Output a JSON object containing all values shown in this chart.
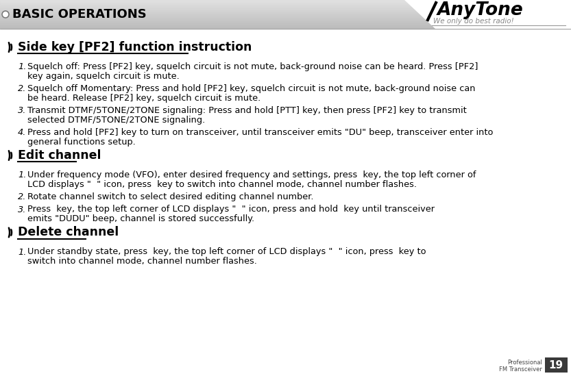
{
  "bg_color": "#ffffff",
  "header_text": "BASIC OPERATIONS",
  "header_text_color": "#000000",
  "header_bg_start": "#bbbbbb",
  "header_bg_end": "#dddddd",
  "page_number": "19",
  "section1_title": "Side key [PF2] function instruction",
  "section1_items": [
    "Squelch off: Press [PF2] key, squelch circuit is not mute, back-ground noise can be heard. Press [PF2]\nkey again, squelch circuit is mute.",
    "Squelch off Momentary: Press and hold [PF2] key, squelch circuit is not mute, back-ground noise can\nbe heard. Release [PF2] key, squelch circuit is mute.",
    "Transmit DTMF/5TONE/2TONE signaling: Press and hold [PTT] key, then press [PF2] key to transmit\nselected DTMF/5TONE/2TONE signaling.",
    "Press and hold [PF2] key to turn on transceiver, until transceiver emits \"DU\" beep, transceiver enter into\ngeneral functions setup."
  ],
  "section2_title": "Edit channel",
  "section2_items": [
    "Under frequency mode (VFO), enter desired frequency and settings, press  key, the top left corner of\nLCD displays \"  \" icon, press  key to switch into channel mode, channel number flashes.",
    "Rotate channel switch to select desired editing channel number.",
    "Press  key, the top left corner of LCD displays \"  \" icon, press and hold  key until transceiver\nemits \"DUDU\" beep, channel is stored successfully."
  ],
  "section3_title": "Delete channel",
  "section3_items": [
    "Under standby state, press  key, the top left corner of LCD displays \"  \" icon, press  key to\nswitch into channel mode, channel number flashes."
  ],
  "footer_text1": "Professional",
  "footer_text2": "FM Transceiver"
}
